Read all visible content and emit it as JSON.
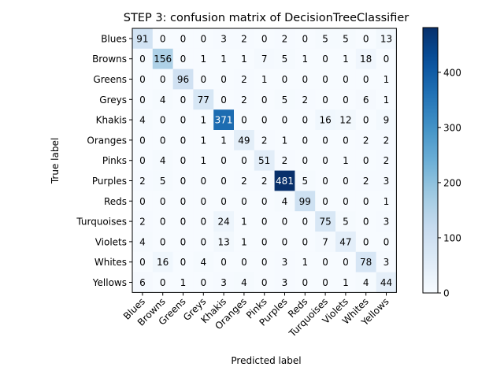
{
  "chart_data": {
    "type": "heatmap",
    "title": "STEP 3: confusion matrix of DecisionTreeClassifier",
    "xlabel": "Predicted label",
    "ylabel": "True label",
    "colormap": "Blues",
    "color_low": "#f7fbff",
    "color_high": "#08306b",
    "vmin": 0,
    "vmax": 481,
    "colorbar_ticks": [
      0,
      100,
      200,
      300,
      400
    ],
    "labels": [
      "Blues",
      "Browns",
      "Greens",
      "Greys",
      "Khakis",
      "Oranges",
      "Pinks",
      "Purples",
      "Reds",
      "Turquoises",
      "Violets",
      "Whites",
      "Yellows"
    ],
    "matrix": [
      [
        91,
        0,
        0,
        0,
        3,
        2,
        0,
        2,
        0,
        5,
        5,
        0,
        13
      ],
      [
        0,
        156,
        0,
        1,
        1,
        1,
        7,
        5,
        1,
        0,
        1,
        18,
        0
      ],
      [
        0,
        0,
        96,
        0,
        0,
        2,
        1,
        0,
        0,
        0,
        0,
        0,
        1
      ],
      [
        0,
        4,
        0,
        77,
        0,
        2,
        0,
        5,
        2,
        0,
        0,
        6,
        1
      ],
      [
        4,
        0,
        0,
        1,
        371,
        0,
        0,
        0,
        0,
        16,
        12,
        0,
        9
      ],
      [
        0,
        0,
        0,
        1,
        1,
        49,
        2,
        1,
        0,
        0,
        0,
        2,
        2
      ],
      [
        0,
        4,
        0,
        1,
        0,
        0,
        51,
        2,
        0,
        0,
        1,
        0,
        2
      ],
      [
        2,
        5,
        0,
        0,
        0,
        2,
        2,
        481,
        5,
        0,
        0,
        2,
        3
      ],
      [
        0,
        0,
        0,
        0,
        0,
        0,
        0,
        4,
        99,
        0,
        0,
        0,
        1
      ],
      [
        2,
        0,
        0,
        0,
        24,
        1,
        0,
        0,
        0,
        75,
        5,
        0,
        3
      ],
      [
        4,
        0,
        0,
        0,
        13,
        1,
        0,
        0,
        0,
        7,
        47,
        0,
        0
      ],
      [
        0,
        16,
        0,
        4,
        0,
        0,
        0,
        3,
        1,
        0,
        0,
        78,
        3
      ],
      [
        6,
        0,
        1,
        0,
        3,
        4,
        0,
        3,
        0,
        0,
        1,
        4,
        44
      ]
    ]
  }
}
